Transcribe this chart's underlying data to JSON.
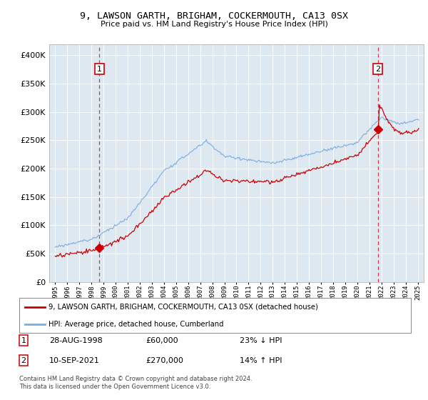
{
  "title": "9, LAWSON GARTH, BRIGHAM, COCKERMOUTH, CA13 0SX",
  "subtitle": "Price paid vs. HM Land Registry's House Price Index (HPI)",
  "legend_entry1": "9, LAWSON GARTH, BRIGHAM, COCKERMOUTH, CA13 0SX (detached house)",
  "legend_entry2": "HPI: Average price, detached house, Cumberland",
  "annotation1_label": "1",
  "annotation1_date": "28-AUG-1998",
  "annotation1_price": "£60,000",
  "annotation1_hpi": "23% ↓ HPI",
  "annotation2_label": "2",
  "annotation2_date": "10-SEP-2021",
  "annotation2_price": "£270,000",
  "annotation2_hpi": "14% ↑ HPI",
  "footnote": "Contains HM Land Registry data © Crown copyright and database right 2024.\nThis data is licensed under the Open Government Licence v3.0.",
  "bg_color": "#dde8f0",
  "plot_bg_color": "#dde8f0",
  "hpi_color": "#7aade0",
  "price_color": "#cc0000",
  "marker1_x": 1998.65,
  "marker1_y": 60000,
  "marker2_x": 2021.7,
  "marker2_y": 270000,
  "ylim": [
    0,
    420000
  ],
  "yticks": [
    0,
    50000,
    100000,
    150000,
    200000,
    250000,
    300000,
    350000,
    400000
  ],
  "xlim_start": 1994.5,
  "xlim_end": 2025.5
}
